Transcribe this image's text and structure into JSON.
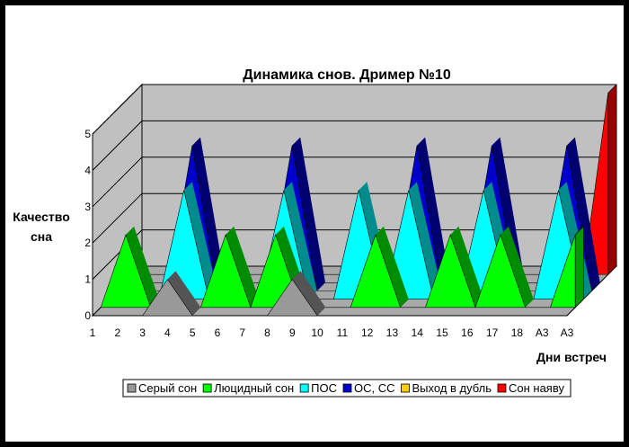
{
  "chart_data": {
    "type": "area",
    "title": "Динамика снов.  Дример №10",
    "ylabel_line1": "Качество",
    "ylabel_line2": "сна",
    "xlabel": "Дни встреч",
    "ylim": [
      0,
      5
    ],
    "y_ticks": [
      "0",
      "1",
      "2",
      "3",
      "4",
      "5"
    ],
    "categories": [
      "1",
      "2",
      "3",
      "4",
      "5",
      "6",
      "7",
      "8",
      "9",
      "10",
      "11",
      "12",
      "13",
      "14",
      "15",
      "16",
      "17",
      "18",
      "А3",
      "А3"
    ],
    "legend_position": "bottom",
    "series": [
      {
        "name": "Серый сон",
        "color": "#999999",
        "points": [
          [
            4,
            1
          ],
          [
            9,
            1
          ]
        ]
      },
      {
        "name": "Люцидный сон",
        "color": "#00ff00",
        "points": [
          [
            2,
            2
          ],
          [
            6,
            2
          ],
          [
            8,
            2
          ],
          [
            12,
            2
          ],
          [
            15,
            2
          ],
          [
            17,
            2
          ],
          [
            20,
            2
          ]
        ]
      },
      {
        "name": "ПОС",
        "color": "#00ffff",
        "points": [
          [
            4,
            3
          ],
          [
            8,
            3
          ],
          [
            11,
            3
          ],
          [
            13,
            3
          ],
          [
            16,
            3
          ],
          [
            19,
            3
          ]
        ]
      },
      {
        "name": "ОС, СС",
        "color": "#0000cc",
        "points": [
          [
            4,
            4
          ],
          [
            8,
            4
          ],
          [
            13,
            4
          ],
          [
            16,
            4
          ],
          [
            19,
            4
          ]
        ]
      },
      {
        "name": "Выход в дубль",
        "color": "#ffcc00",
        "points": []
      },
      {
        "name": "Сон наяву",
        "color": "#ff0000",
        "points": [
          [
            20,
            5
          ]
        ]
      }
    ]
  }
}
